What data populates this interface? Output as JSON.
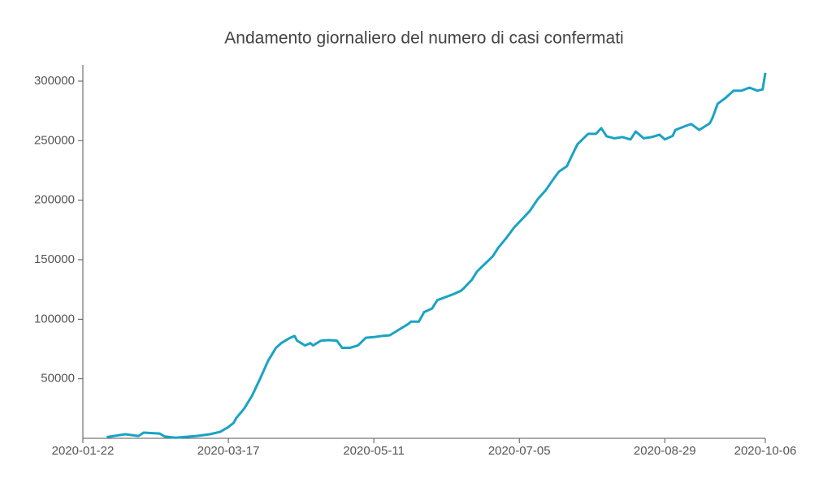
{
  "chart_data": {
    "type": "line",
    "title": "Andamento giornaliero del numero di casi confermati",
    "x": [
      "2020-01-31",
      "2020-02-07",
      "2020-02-12",
      "2020-02-14",
      "2020-02-20",
      "2020-02-22",
      "2020-02-26",
      "2020-03-05",
      "2020-03-10",
      "2020-03-14",
      "2020-03-17",
      "2020-03-19",
      "2020-03-20",
      "2020-03-23",
      "2020-03-26",
      "2020-03-29",
      "2020-04-01",
      "2020-04-04",
      "2020-04-06",
      "2020-04-09",
      "2020-04-11",
      "2020-04-12",
      "2020-04-15",
      "2020-04-17",
      "2020-04-18",
      "2020-04-21",
      "2020-04-24",
      "2020-04-27",
      "2020-04-29",
      "2020-05-02",
      "2020-05-05",
      "2020-05-08",
      "2020-05-11",
      "2020-05-14",
      "2020-05-17",
      "2020-05-21",
      "2020-05-24",
      "2020-05-25",
      "2020-05-28",
      "2020-05-30",
      "2020-06-02",
      "2020-06-04",
      "2020-06-07",
      "2020-06-10",
      "2020-06-13",
      "2020-06-14",
      "2020-06-17",
      "2020-06-19",
      "2020-06-22",
      "2020-06-25",
      "2020-06-27",
      "2020-06-30",
      "2020-07-03",
      "2020-07-06",
      "2020-07-09",
      "2020-07-12",
      "2020-07-15",
      "2020-07-18",
      "2020-07-20",
      "2020-07-23",
      "2020-07-25",
      "2020-07-27",
      "2020-07-31",
      "2020-08-03",
      "2020-08-05",
      "2020-08-07",
      "2020-08-10",
      "2020-08-13",
      "2020-08-16",
      "2020-08-18",
      "2020-08-21",
      "2020-08-24",
      "2020-08-27",
      "2020-08-29",
      "2020-09-01",
      "2020-09-02",
      "2020-09-06",
      "2020-09-08",
      "2020-09-11",
      "2020-09-15",
      "2020-09-16",
      "2020-09-18",
      "2020-09-21",
      "2020-09-24",
      "2020-09-27",
      "2020-09-30",
      "2020-10-03",
      "2020-10-05",
      "2020-10-06"
    ],
    "series": [
      {
        "color": "#1aa3c4",
        "values": [
          1000,
          3400,
          2000,
          4800,
          4000,
          1500,
          500,
          2000,
          3400,
          5500,
          9500,
          13000,
          17000,
          25000,
          36000,
          50000,
          65000,
          76000,
          80000,
          84000,
          86000,
          82000,
          78000,
          80000,
          78000,
          82000,
          82500,
          82000,
          76000,
          76000,
          78000,
          84500,
          85000,
          86000,
          86500,
          92000,
          96000,
          98000,
          98000,
          106000,
          109000,
          116000,
          118500,
          121000,
          124000,
          126000,
          133000,
          140000,
          146500,
          153000,
          160000,
          168000,
          177000,
          184000,
          191000,
          201000,
          208500,
          218000,
          224000,
          228500,
          238000,
          247000,
          255700,
          255700,
          260500,
          253700,
          252000,
          253000,
          251000,
          257700,
          252000,
          253000,
          255000,
          251000,
          254000,
          259000,
          262500,
          264000,
          259000,
          264500,
          269000,
          281000,
          286000,
          292000,
          292000,
          294500,
          292000,
          293000,
          307000
        ]
      }
    ],
    "xlim": [
      "2020-01-22",
      "2020-10-06"
    ],
    "xticks": [
      "2020-01-22",
      "2020-03-17",
      "2020-05-11",
      "2020-07-05",
      "2020-08-29",
      "2020-10-06"
    ],
    "ylim": [
      0,
      313600
    ],
    "yticks": [
      50000,
      100000,
      150000,
      200000,
      250000,
      300000
    ]
  }
}
